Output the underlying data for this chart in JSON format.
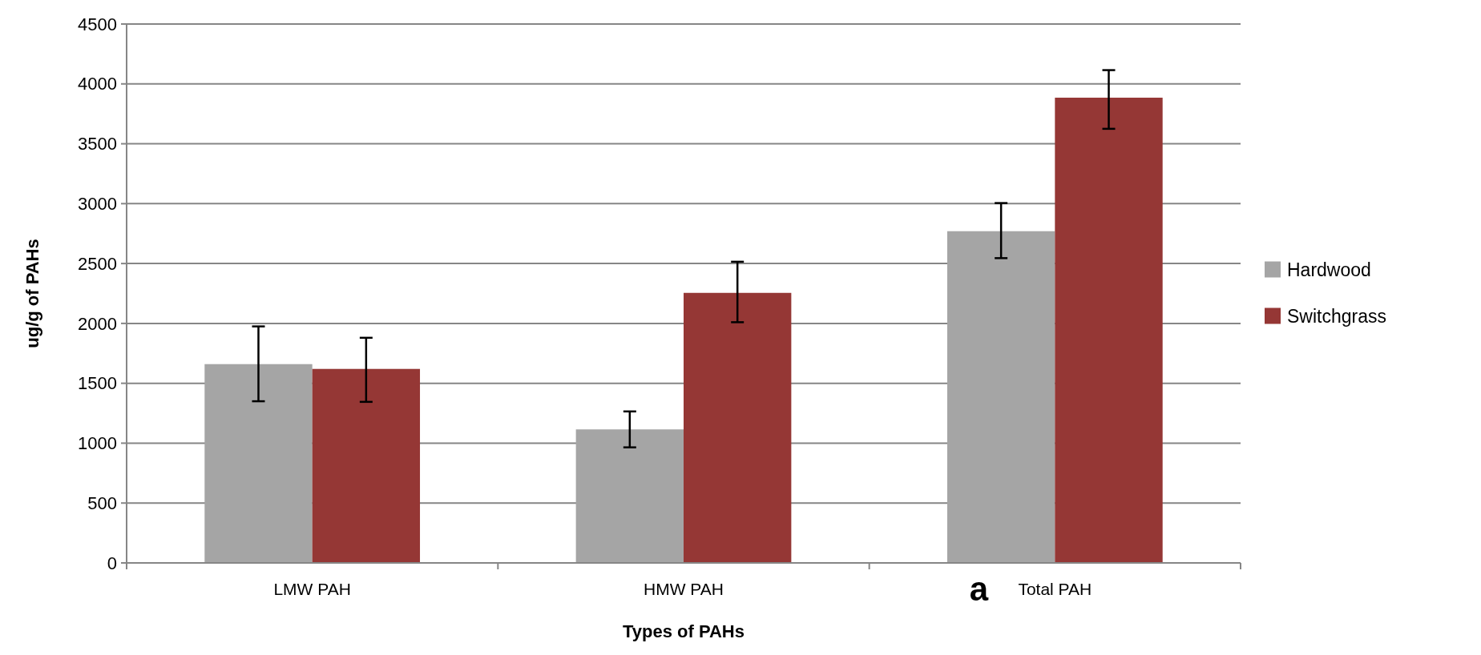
{
  "chart_data": {
    "type": "bar",
    "xlabel": "Types of PAHs",
    "ylabel": "ug/g of PAHs",
    "categories": [
      "LMW PAH",
      "HMW PAH",
      "Total PAH"
    ],
    "series": [
      {
        "name": "Hardwood",
        "color": "#a5a5a5",
        "values": [
          1660,
          1115,
          2770
        ],
        "errors": [
          [
            1350,
            1975
          ],
          [
            965,
            1265
          ],
          [
            2545,
            3005
          ]
        ]
      },
      {
        "name": "Switchgrass",
        "color": "#953735",
        "values": [
          1620,
          2255,
          3885
        ],
        "errors": [
          [
            1345,
            1880
          ],
          [
            2010,
            2515
          ],
          [
            3625,
            4115
          ]
        ]
      }
    ],
    "ylim": [
      0,
      4500
    ],
    "yticks": [
      0,
      500,
      1000,
      1500,
      2000,
      2500,
      3000,
      3500,
      4000,
      4500
    ],
    "grid": "y",
    "legend": "right",
    "annotations": [
      "a"
    ]
  }
}
